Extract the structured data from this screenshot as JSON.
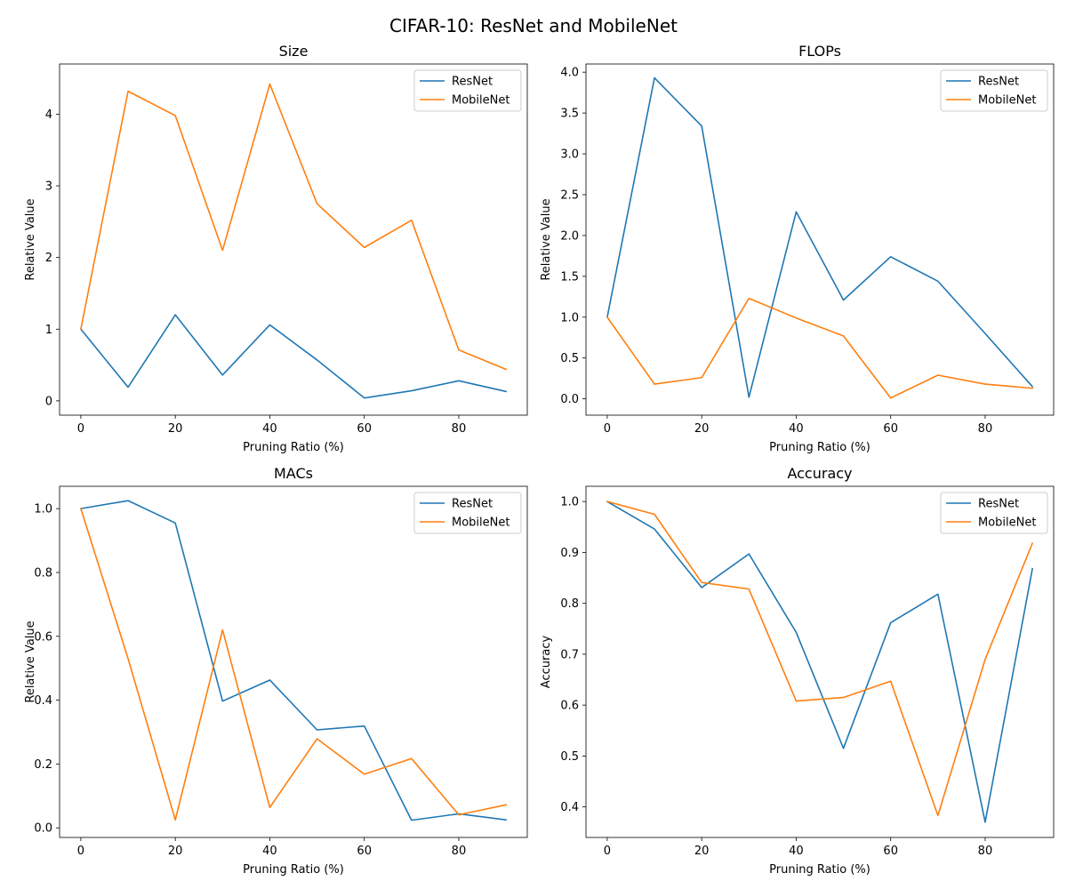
{
  "figure": {
    "title": "CIFAR-10: ResNet and MobileNet",
    "colors": {
      "ResNet": "#1f77b4",
      "MobileNet": "#ff7f0e"
    }
  },
  "chart_data": [
    {
      "type": "line",
      "title": "Size",
      "xlabel": "Pruning Ratio (%)",
      "ylabel": "Relative Value",
      "x": [
        0,
        10,
        20,
        30,
        40,
        50,
        60,
        70,
        80,
        90
      ],
      "xlim": [
        -4.5,
        94.5
      ],
      "ylim": [
        -0.2,
        4.7
      ],
      "xticks": [
        0,
        20,
        40,
        60,
        80
      ],
      "yticks": [
        0,
        1,
        2,
        3,
        4
      ],
      "legend": "top-right",
      "grid": false,
      "series": [
        {
          "name": "ResNet",
          "values": [
            1.0,
            0.19,
            1.2,
            0.36,
            1.06,
            0.57,
            0.04,
            0.14,
            0.28,
            0.13
          ]
        },
        {
          "name": "MobileNet",
          "values": [
            1.0,
            4.32,
            3.98,
            2.1,
            4.42,
            2.75,
            2.14,
            2.52,
            0.71,
            0.44
          ]
        }
      ]
    },
    {
      "type": "line",
      "title": "FLOPs",
      "xlabel": "Pruning Ratio (%)",
      "ylabel": "Relative Value",
      "x": [
        0,
        10,
        20,
        30,
        40,
        50,
        60,
        70,
        80,
        90
      ],
      "xlim": [
        -4.5,
        94.5
      ],
      "ylim": [
        -0.2,
        4.1
      ],
      "xticks": [
        0,
        20,
        40,
        60,
        80
      ],
      "yticks": [
        "0.0",
        "0.5",
        "1.0",
        "1.5",
        "2.0",
        "2.5",
        "3.0",
        "3.5",
        "4.0"
      ],
      "legend": "top-right",
      "grid": false,
      "series": [
        {
          "name": "ResNet",
          "values": [
            1.0,
            3.93,
            3.34,
            0.02,
            2.29,
            1.21,
            1.74,
            1.44,
            0.8,
            0.15
          ]
        },
        {
          "name": "MobileNet",
          "values": [
            1.0,
            0.18,
            0.26,
            1.23,
            0.99,
            0.77,
            0.01,
            0.29,
            0.18,
            0.13
          ]
        }
      ]
    },
    {
      "type": "line",
      "title": "MACs",
      "xlabel": "Pruning Ratio (%)",
      "ylabel": "Relative Value",
      "x": [
        0,
        10,
        20,
        30,
        40,
        50,
        60,
        70,
        80,
        90
      ],
      "xlim": [
        -4.5,
        94.5
      ],
      "ylim": [
        -0.03,
        1.07
      ],
      "xticks": [
        0,
        20,
        40,
        60,
        80
      ],
      "yticks": [
        "0.0",
        "0.2",
        "0.4",
        "0.6",
        "0.8",
        "1.0"
      ],
      "legend": "top-right",
      "grid": false,
      "series": [
        {
          "name": "ResNet",
          "values": [
            1.0,
            1.025,
            0.955,
            0.397,
            0.463,
            0.307,
            0.319,
            0.024,
            0.044,
            0.025
          ]
        },
        {
          "name": "MobileNet",
          "values": [
            1.0,
            0.53,
            0.025,
            0.62,
            0.064,
            0.279,
            0.168,
            0.217,
            0.041,
            0.072
          ]
        }
      ]
    },
    {
      "type": "line",
      "title": "Accuracy",
      "xlabel": "Pruning Ratio (%)",
      "ylabel": "Accuracy",
      "x": [
        0,
        10,
        20,
        30,
        40,
        50,
        60,
        70,
        80,
        90
      ],
      "xlim": [
        -4.5,
        94.5
      ],
      "ylim": [
        0.34,
        1.03
      ],
      "xticks": [
        0,
        20,
        40,
        60,
        80
      ],
      "yticks": [
        "0.4",
        "0.5",
        "0.6",
        "0.7",
        "0.8",
        "0.9",
        "1.0"
      ],
      "legend": "top-right",
      "grid": false,
      "series": [
        {
          "name": "ResNet",
          "values": [
            1.0,
            0.946,
            0.831,
            0.897,
            0.743,
            0.515,
            0.762,
            0.818,
            0.37,
            0.868
          ]
        },
        {
          "name": "MobileNet",
          "values": [
            1.0,
            0.975,
            0.841,
            0.828,
            0.608,
            0.615,
            0.647,
            0.383,
            0.69,
            0.918
          ]
        }
      ]
    }
  ]
}
